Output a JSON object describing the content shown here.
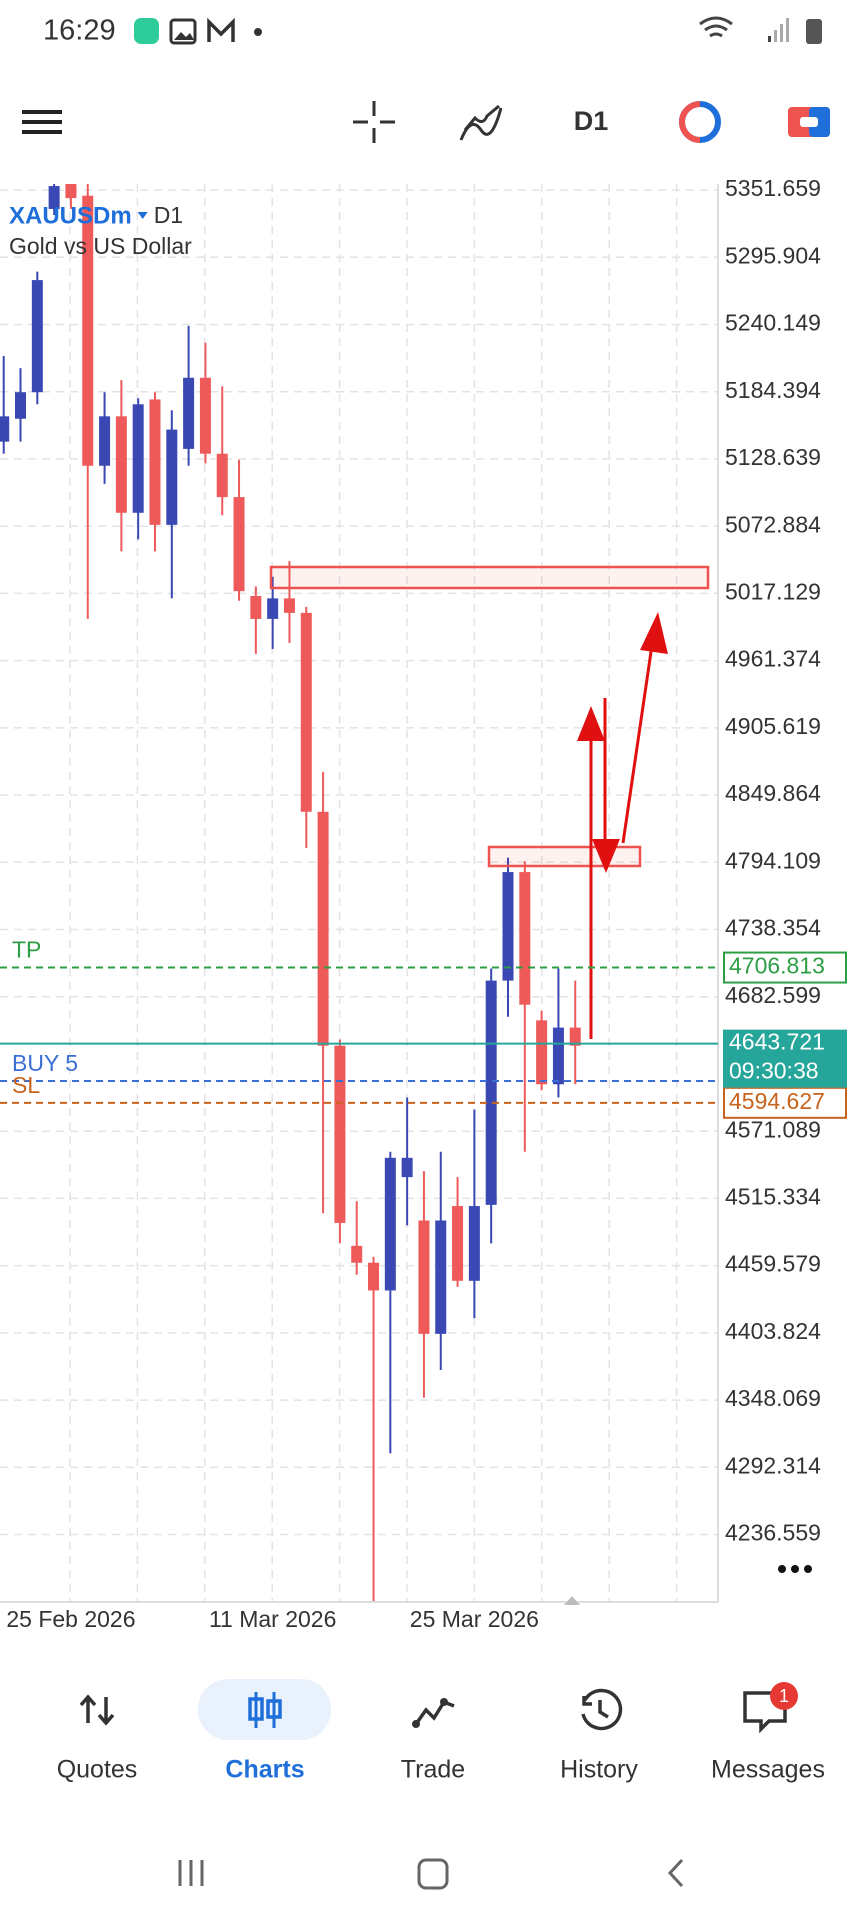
{
  "status_bar": {
    "time": "16:29"
  },
  "toolbar": {
    "timeframe": "D1"
  },
  "chart_data": {
    "type": "candlestick",
    "symbol": "XAUUSDm",
    "timeframe": "D1",
    "description": "Gold vs US Dollar",
    "up_color": "#3a48b4",
    "down_color": "#ee5a5a",
    "ylim": [
      4180.6,
      5356.7
    ],
    "yticks": [
      5351.659,
      5295.904,
      5240.149,
      5184.394,
      5128.639,
      5072.884,
      5017.129,
      4961.374,
      4905.619,
      4849.864,
      4794.109,
      4738.354,
      4682.599,
      4571.089,
      4515.334,
      4459.579,
      4403.824,
      4348.069,
      4292.314,
      4236.559
    ],
    "grid": true,
    "categories": [
      null,
      null,
      null,
      null,
      "25 Feb 2026",
      null,
      null,
      null,
      null,
      null,
      null,
      null,
      null,
      null,
      null,
      null,
      "11 Mar 2026",
      null,
      null,
      null,
      null,
      null,
      null,
      null,
      null,
      null,
      null,
      null,
      "25 Mar 2026",
      null,
      null,
      null,
      null,
      null,
      null
    ],
    "open": [
      5143,
      5162,
      5184,
      5336,
      5357,
      5347,
      5123,
      5164,
      5084,
      5178,
      5074,
      5137,
      5196,
      5133,
      5097,
      5015,
      4996,
      5013,
      5001,
      4836,
      4642,
      4476,
      4462,
      4439,
      4533,
      4497,
      4403,
      4509,
      4447,
      4510,
      4696,
      4786,
      4663,
      4610,
      4657
    ],
    "high": [
      5214,
      5204,
      5284,
      5357,
      5357,
      5357,
      5184,
      5194,
      5179,
      5184,
      5169,
      5239,
      5225,
      5189,
      5128,
      5023,
      5031,
      5044,
      5006,
      4869,
      4647,
      4513,
      4467,
      4554,
      4599,
      4538,
      4554,
      4533,
      4589,
      4706,
      4798,
      4795,
      4671,
      4706,
      4696
    ],
    "low": [
      5133,
      5143,
      5174,
      5331,
      5336,
      4996,
      5108,
      5052,
      5062,
      5052,
      5013,
      5123,
      5125,
      5082,
      5011,
      4967,
      4971,
      4976,
      4806,
      4503,
      4478,
      4452,
      4179,
      4304,
      4493,
      4350,
      4373,
      4442,
      4416,
      4478,
      4666,
      4554,
      4605,
      4599,
      4610
    ],
    "close": [
      5164,
      5184,
      5277,
      5355,
      5345,
      5123,
      5164,
      5084,
      5174,
      5074,
      5153,
      5196,
      5133,
      5097,
      5019,
      4996,
      5013,
      5001,
      4836,
      4642,
      4495,
      4462,
      4439,
      4549,
      4549,
      4403,
      4497,
      4447,
      4509,
      4696,
      4786,
      4676,
      4610,
      4657,
      4642
    ],
    "tp": {
      "label": "TP",
      "value": 4706.813,
      "color": "#2e9e45"
    },
    "position": {
      "label": "BUY 5",
      "value": 4612.7,
      "color": "#3b6fd6"
    },
    "sl": {
      "label": "SL",
      "value": 4594.627,
      "color": "#c8631e"
    },
    "bid": {
      "value": 4643.721,
      "timer": "09:30:38",
      "color": "#26a69a"
    }
  },
  "nav": {
    "items": [
      "Quotes",
      "Charts",
      "Trade",
      "History",
      "Messages"
    ],
    "active": 1,
    "badge": 1
  }
}
